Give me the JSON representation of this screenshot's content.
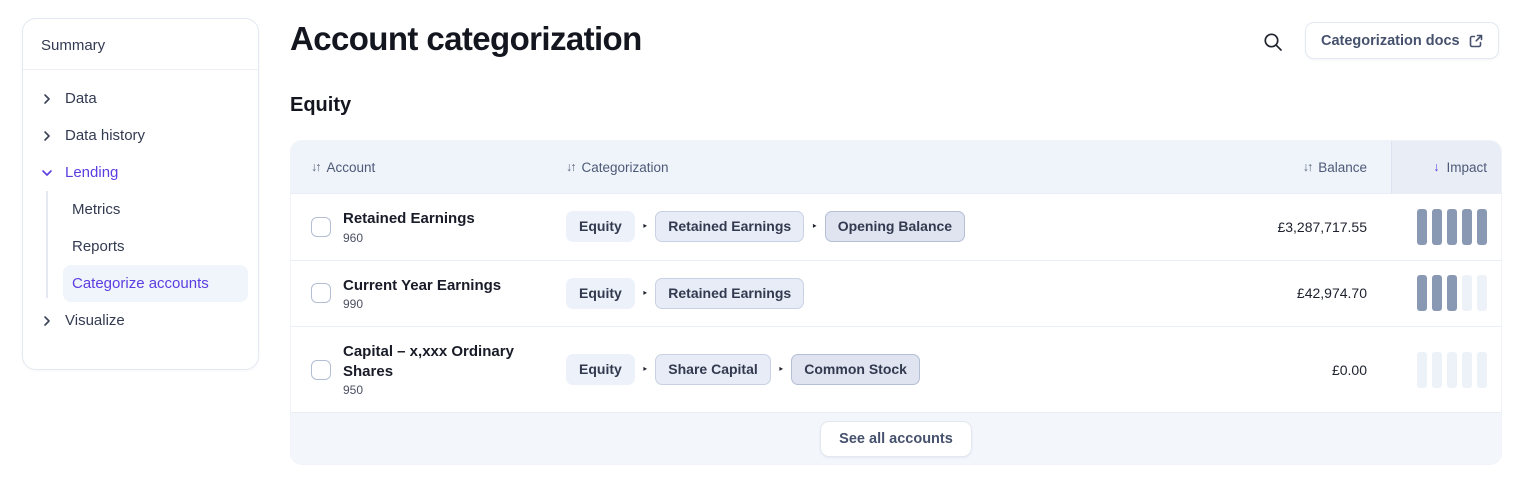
{
  "sidebar": {
    "summary_label": "Summary",
    "items": {
      "data": "Data",
      "data_history": "Data history",
      "lending": "Lending",
      "metrics": "Metrics",
      "reports": "Reports",
      "categorize_accounts": "Categorize accounts",
      "visualize": "Visualize"
    }
  },
  "header": {
    "title": "Account categorization",
    "docs_button_label": "Categorization docs"
  },
  "section": {
    "heading": "Equity"
  },
  "table": {
    "columns": {
      "account": "Account",
      "categorization": "Categorization",
      "balance": "Balance",
      "impact": "Impact"
    },
    "sort_glyphs": {
      "account": "↓↑",
      "categorization": "↓↑",
      "balance": "↓↑",
      "impact": "↓"
    },
    "pill_separator": "‣",
    "rows": [
      {
        "name": "Retained Earnings",
        "code": "960",
        "categorization": [
          "Equity",
          "Retained Earnings",
          "Opening Balance"
        ],
        "balance": "£3,287,717.55",
        "impact_filled": 5,
        "impact_total": 5
      },
      {
        "name": "Current Year Earnings",
        "code": "990",
        "categorization": [
          "Equity",
          "Retained Earnings"
        ],
        "balance": "£42,974.70",
        "impact_filled": 3,
        "impact_total": 5
      },
      {
        "name": "Capital – x,xxx Ordinary Shares",
        "code": "950",
        "categorization": [
          "Equity",
          "Share Capital",
          "Common Stock"
        ],
        "balance": "£0.00",
        "impact_filled": 0,
        "impact_total": 5
      }
    ],
    "see_all_button": "See all accounts"
  },
  "colors": {
    "accent_purple": "#5b3de0",
    "impact_filled": "#8a99b3",
    "impact_empty": "#edf1f8",
    "header_band": "#eff3fa",
    "footer_band": "#f3f6fb"
  }
}
